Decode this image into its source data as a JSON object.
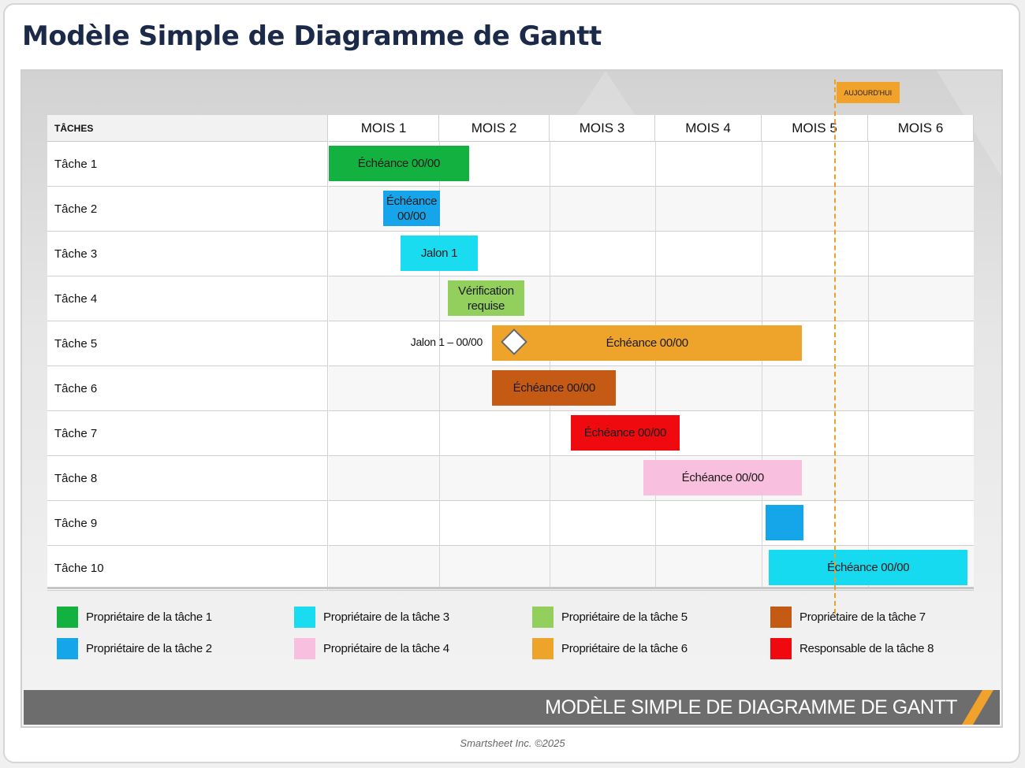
{
  "page": {
    "title": "Modèle Simple de Diagramme de Gantt",
    "footer_banner": "MODÈLE SIMPLE DE DIAGRAMME DE GANTT",
    "credit": "Smartsheet Inc. ©2025"
  },
  "chart_data": {
    "type": "gantt",
    "header_label": "TÂCHES",
    "today_label": "AUJOURD'HUI",
    "today_month": 4.68,
    "months": [
      "MOIS 1",
      "MOIS 2",
      "MOIS 3",
      "MOIS 4",
      "MOIS 5",
      "MOIS 6"
    ],
    "tasks": [
      {
        "name": "Tâche 1",
        "bar_label": "Échéance 00/00",
        "start": 0.0,
        "end": 1.27,
        "color": "#13b13f",
        "text_color": "#1a1a1a"
      },
      {
        "name": "Tâche 2",
        "bar_label": "Échéance 00/00",
        "start": 0.49,
        "end": 1.01,
        "color": "#16a5ea",
        "text_color": "#1a1a1a"
      },
      {
        "name": "Tâche 3",
        "bar_label": "Jalon 1",
        "start": 0.65,
        "end": 1.35,
        "color": "#1adcf0",
        "text_color": "#1a1a1a"
      },
      {
        "name": "Tâche 4",
        "bar_label": "Vérification requise",
        "start": 1.08,
        "end": 1.77,
        "color": "#92cf5d",
        "text_color": "#1a1a1a"
      },
      {
        "name": "Tâche 5",
        "bar_label": "Échéance 00/00",
        "start": 1.48,
        "end": 4.38,
        "color": "#eea42b",
        "text_color": "#1a1a1a",
        "milestone": {
          "label": "Jalon 1 – 00/00",
          "at": 1.48
        }
      },
      {
        "name": "Tâche 6",
        "bar_label": "Échéance 00/00",
        "start": 1.48,
        "end": 2.63,
        "color": "#c55a15",
        "text_color": "#1a1a1a"
      },
      {
        "name": "Tâche 7",
        "bar_label": "Échéance 00/00",
        "start": 2.2,
        "end": 3.23,
        "color": "#ee0a0f",
        "text_color": "#1a1a1a"
      },
      {
        "name": "Tâche 8",
        "bar_label": "Échéance 00/00",
        "start": 2.89,
        "end": 4.38,
        "color": "#f8bfdf",
        "text_color": "#1a1a1a"
      },
      {
        "name": "Tâche 9",
        "bar_label": "",
        "start": 4.04,
        "end": 4.39,
        "color": "#15a6ea",
        "text_color": "#1a1a1a"
      },
      {
        "name": "Tâche 10",
        "bar_label": "Échéance 00/00",
        "start": 4.07,
        "end": 5.94,
        "color": "#15daf0",
        "text_color": "#1a1a1a"
      }
    ],
    "legend": [
      {
        "label": "Propriétaire de la tâche 1",
        "color": "#13b13f"
      },
      {
        "label": "Propriétaire de la tâche 2",
        "color": "#15a6ea"
      },
      {
        "label": "Propriétaire de la tâche 3",
        "color": "#1adcf0"
      },
      {
        "label": "Propriétaire de la tâche 4",
        "color": "#f8bfdf"
      },
      {
        "label": "Propriétaire de la tâche 5",
        "color": "#92cf5d"
      },
      {
        "label": "Propriétaire de la tâche 6",
        "color": "#eea42b"
      },
      {
        "label": "Propriétaire de la tâche 7",
        "color": "#c55a15"
      },
      {
        "label": "Responsable de la tâche 8",
        "color": "#ee0a0f"
      }
    ]
  }
}
